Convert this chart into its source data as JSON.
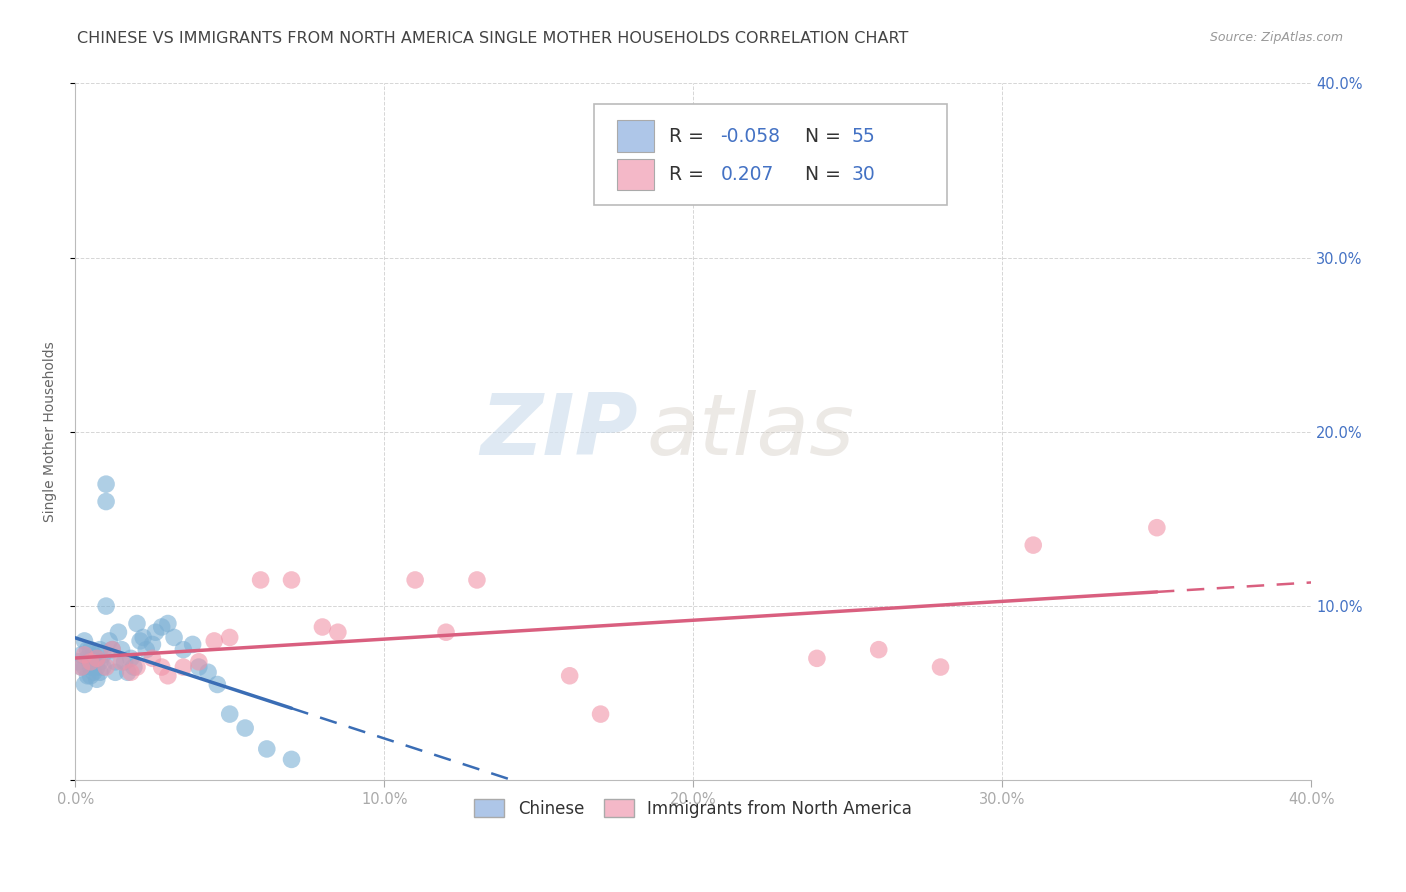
{
  "title": "CHINESE VS IMMIGRANTS FROM NORTH AMERICA SINGLE MOTHER HOUSEHOLDS CORRELATION CHART",
  "source": "Source: ZipAtlas.com",
  "ylabel": "Single Mother Households",
  "xlim": [
    0.0,
    0.4
  ],
  "ylim": [
    0.0,
    0.4
  ],
  "xticks": [
    0.0,
    0.1,
    0.2,
    0.3,
    0.4
  ],
  "yticks": [
    0.0,
    0.1,
    0.2,
    0.3,
    0.4
  ],
  "xticklabels": [
    "0.0%",
    "10.0%",
    "20.0%",
    "30.0%",
    "40.0%"
  ],
  "yticklabels_right": [
    "",
    "10.0%",
    "20.0%",
    "30.0%",
    "40.0%"
  ],
  "watermark_zip": "ZIP",
  "watermark_atlas": "atlas",
  "chinese_color_scatter": "#7bafd4",
  "chinese_color_line": "#3a6db5",
  "immigrant_color_scatter": "#f094a8",
  "immigrant_color_line": "#d95f7f",
  "chinese_R": -0.058,
  "chinese_N": 55,
  "immigrant_R": 0.207,
  "immigrant_N": 30,
  "background_color": "#ffffff",
  "grid_color": "#cccccc",
  "tick_label_color": "#4472c4",
  "title_color": "#444444",
  "title_fontsize": 11.5,
  "axis_label_fontsize": 10,
  "tick_fontsize": 10.5,
  "legend_r1": "R = -0.058",
  "legend_n1": "N = 55",
  "legend_r2": "R =  0.207",
  "legend_n2": "N = 30",
  "legend_color1": "#aec6e8",
  "legend_color2": "#f4b8c8",
  "legend_edge": "#bbbbbb",
  "chinese_x": [
    0.001,
    0.002,
    0.002,
    0.003,
    0.003,
    0.003,
    0.004,
    0.004,
    0.004,
    0.005,
    0.005,
    0.005,
    0.005,
    0.006,
    0.006,
    0.006,
    0.007,
    0.007,
    0.007,
    0.008,
    0.008,
    0.008,
    0.009,
    0.009,
    0.01,
    0.01,
    0.01,
    0.011,
    0.012,
    0.013,
    0.013,
    0.014,
    0.015,
    0.016,
    0.017,
    0.018,
    0.019,
    0.02,
    0.021,
    0.022,
    0.023,
    0.025,
    0.026,
    0.028,
    0.03,
    0.032,
    0.035,
    0.038,
    0.04,
    0.043,
    0.046,
    0.05,
    0.055,
    0.062,
    0.07
  ],
  "chinese_y": [
    0.068,
    0.072,
    0.065,
    0.08,
    0.065,
    0.055,
    0.075,
    0.07,
    0.06,
    0.068,
    0.075,
    0.065,
    0.06,
    0.072,
    0.068,
    0.062,
    0.07,
    0.065,
    0.058,
    0.075,
    0.068,
    0.062,
    0.072,
    0.065,
    0.1,
    0.17,
    0.16,
    0.08,
    0.075,
    0.068,
    0.062,
    0.085,
    0.075,
    0.068,
    0.062,
    0.07,
    0.065,
    0.09,
    0.08,
    0.082,
    0.075,
    0.078,
    0.085,
    0.088,
    0.09,
    0.082,
    0.075,
    0.078,
    0.065,
    0.062,
    0.055,
    0.038,
    0.03,
    0.018,
    0.012
  ],
  "immigrant_x": [
    0.002,
    0.003,
    0.005,
    0.007,
    0.01,
    0.012,
    0.015,
    0.018,
    0.02,
    0.025,
    0.028,
    0.03,
    0.035,
    0.04,
    0.045,
    0.05,
    0.06,
    0.07,
    0.08,
    0.085,
    0.11,
    0.12,
    0.13,
    0.16,
    0.17,
    0.24,
    0.26,
    0.28,
    0.31,
    0.35
  ],
  "immigrant_y": [
    0.065,
    0.072,
    0.068,
    0.07,
    0.065,
    0.075,
    0.068,
    0.062,
    0.065,
    0.07,
    0.065,
    0.06,
    0.065,
    0.068,
    0.08,
    0.082,
    0.115,
    0.115,
    0.088,
    0.085,
    0.115,
    0.085,
    0.115,
    0.06,
    0.038,
    0.07,
    0.075,
    0.065,
    0.135,
    0.145
  ]
}
